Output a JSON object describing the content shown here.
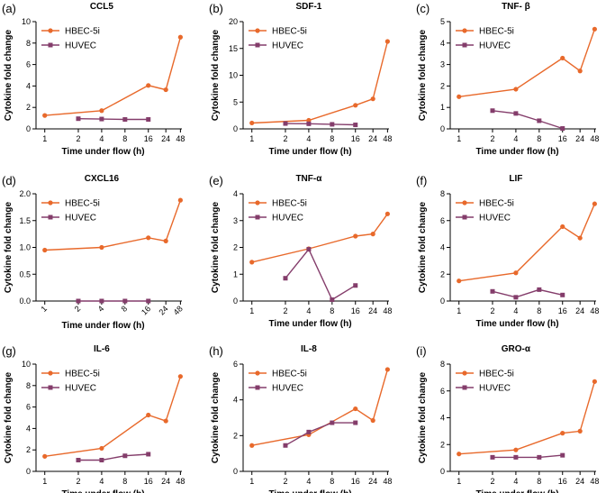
{
  "chart_data": [
    {
      "panel": "(a)",
      "title": "CCL5",
      "type": "line",
      "categories": [
        "1",
        "2",
        "4",
        "8",
        "16",
        "24",
        "48"
      ],
      "xlabel": "Time under flow (h)",
      "ylabel": "Cytokine fold change",
      "ylim": [
        0,
        10
      ],
      "yticks": [
        "0",
        "2",
        "4",
        "6",
        "8",
        "10"
      ],
      "series": [
        {
          "name": "HBEC-5i",
          "color": "#e8692b",
          "marker": "circle",
          "values": [
            1.25,
            null,
            1.7,
            null,
            4.05,
            3.65,
            8.55
          ]
        },
        {
          "name": "HUVEC",
          "color": "#843d6b",
          "marker": "square",
          "values": [
            null,
            0.95,
            0.92,
            0.88,
            0.88,
            null,
            null
          ]
        }
      ]
    },
    {
      "panel": "(b)",
      "title": "SDF-1",
      "type": "line",
      "categories": [
        "1",
        "2",
        "4",
        "8",
        "16",
        "24",
        "48"
      ],
      "xlabel": "Time under flow (h)",
      "ylabel": "Cytokine fold change",
      "ylim": [
        0,
        20
      ],
      "yticks": [
        "0",
        "5",
        "10",
        "15",
        "20"
      ],
      "series": [
        {
          "name": "HBEC-5i",
          "color": "#e8692b",
          "marker": "circle",
          "values": [
            1.1,
            null,
            1.6,
            null,
            4.4,
            5.6,
            16.3
          ]
        },
        {
          "name": "HUVEC",
          "color": "#843d6b",
          "marker": "square",
          "values": [
            null,
            1.0,
            0.95,
            0.85,
            0.75,
            null,
            null
          ]
        }
      ]
    },
    {
      "panel": "(c)",
      "title": "TNF- β",
      "type": "line",
      "categories": [
        "1",
        "2",
        "4",
        "8",
        "16",
        "24",
        "48"
      ],
      "xlabel": "Time under flow (h)",
      "ylabel": "Cytokine fold change",
      "ylim": [
        0,
        5
      ],
      "yticks": [
        "0",
        "1",
        "2",
        "3",
        "4",
        "5"
      ],
      "series": [
        {
          "name": "HBEC-5i",
          "color": "#e8692b",
          "marker": "circle",
          "values": [
            1.5,
            null,
            1.85,
            null,
            3.3,
            2.7,
            4.65
          ]
        },
        {
          "name": "HUVEC",
          "color": "#843d6b",
          "marker": "square",
          "values": [
            null,
            0.85,
            0.72,
            0.38,
            0.02,
            null,
            null
          ]
        }
      ]
    },
    {
      "panel": "(d)",
      "title": "CXCL16",
      "type": "line",
      "categories": [
        "1",
        "2",
        "4",
        "8",
        "16",
        "24",
        "48"
      ],
      "rotate_xticks": true,
      "xlabel": "Time under flow (h)",
      "ylabel": "Cytokine fold change",
      "ylim": [
        0,
        2.0
      ],
      "yticks": [
        "0.0",
        "0.5",
        "1.0",
        "1.5",
        "2.0"
      ],
      "series": [
        {
          "name": "HBEC-5i",
          "color": "#e8692b",
          "marker": "circle",
          "values": [
            0.95,
            null,
            1.0,
            null,
            1.18,
            1.12,
            1.88
          ]
        },
        {
          "name": "HUVEC",
          "color": "#843d6b",
          "marker": "square",
          "values": [
            null,
            0.0,
            0.0,
            0.0,
            0.0,
            null,
            null
          ]
        }
      ]
    },
    {
      "panel": "(e)",
      "title": "TNF-α",
      "type": "line",
      "categories": [
        "1",
        "2",
        "4",
        "8",
        "16",
        "24",
        "48"
      ],
      "xlabel": "Time under flow (h)",
      "ylabel": "Cytokine fold change",
      "ylim": [
        0,
        4
      ],
      "yticks": [
        "0",
        "1",
        "2",
        "3",
        "4"
      ],
      "series": [
        {
          "name": "HBEC-5i",
          "color": "#e8692b",
          "marker": "circle",
          "values": [
            1.45,
            null,
            1.95,
            null,
            2.42,
            2.5,
            3.25
          ]
        },
        {
          "name": "HUVEC",
          "color": "#843d6b",
          "marker": "square",
          "values": [
            null,
            0.85,
            1.93,
            0.05,
            0.58,
            null,
            null
          ]
        }
      ]
    },
    {
      "panel": "(f)",
      "title": "LIF",
      "type": "line",
      "categories": [
        "1",
        "2",
        "4",
        "8",
        "16",
        "24",
        "48"
      ],
      "xlabel": "Time under flow (h)",
      "ylabel": "Cytokine fold change",
      "ylim": [
        0,
        8
      ],
      "yticks": [
        "0",
        "2",
        "4",
        "6",
        "8"
      ],
      "series": [
        {
          "name": "HBEC-5i",
          "color": "#e8692b",
          "marker": "circle",
          "values": [
            1.5,
            null,
            2.1,
            null,
            5.55,
            4.7,
            7.25
          ]
        },
        {
          "name": "HUVEC",
          "color": "#843d6b",
          "marker": "square",
          "values": [
            null,
            0.72,
            0.28,
            0.85,
            0.45,
            null,
            null
          ]
        }
      ]
    },
    {
      "panel": "(g)",
      "title": "IL-6",
      "type": "line",
      "categories": [
        "1",
        "2",
        "4",
        "8",
        "16",
        "24",
        "48"
      ],
      "xlabel": "Time under flow (h)",
      "ylabel": "Cytokine fold change",
      "ylim": [
        0,
        10
      ],
      "yticks": [
        "0",
        "2",
        "4",
        "6",
        "8",
        "10"
      ],
      "series": [
        {
          "name": "HBEC-5i",
          "color": "#e8692b",
          "marker": "circle",
          "values": [
            1.4,
            null,
            2.15,
            null,
            5.25,
            4.7,
            8.85
          ]
        },
        {
          "name": "HUVEC",
          "color": "#843d6b",
          "marker": "square",
          "values": [
            null,
            1.05,
            1.05,
            1.45,
            1.6,
            null,
            null
          ]
        }
      ]
    },
    {
      "panel": "(h)",
      "title": "IL-8",
      "type": "line",
      "categories": [
        "1",
        "2",
        "4",
        "8",
        "16",
        "24",
        "48"
      ],
      "xlabel": "Time under flow (h)",
      "ylabel": "Cytokine fold change",
      "ylim": [
        0,
        6
      ],
      "yticks": [
        "0",
        "2",
        "4",
        "6"
      ],
      "series": [
        {
          "name": "HBEC-5i",
          "color": "#e8692b",
          "marker": "circle",
          "values": [
            1.45,
            null,
            2.05,
            null,
            3.5,
            2.85,
            5.7
          ]
        },
        {
          "name": "HUVEC",
          "color": "#843d6b",
          "marker": "square",
          "values": [
            null,
            1.45,
            2.2,
            2.72,
            2.72,
            null,
            null
          ]
        }
      ]
    },
    {
      "panel": "(i)",
      "title": "GRO-α",
      "type": "line",
      "categories": [
        "1",
        "2",
        "4",
        "8",
        "16",
        "24",
        "48"
      ],
      "xlabel": "Time under flow (h)",
      "ylabel": "Cytokine fold change",
      "ylim": [
        0,
        8
      ],
      "yticks": [
        "0",
        "2",
        "4",
        "6",
        "8"
      ],
      "series": [
        {
          "name": "HBEC-5i",
          "color": "#e8692b",
          "marker": "circle",
          "values": [
            1.3,
            null,
            1.6,
            null,
            2.85,
            3.0,
            6.7
          ]
        },
        {
          "name": "HUVEC",
          "color": "#843d6b",
          "marker": "square",
          "values": [
            null,
            1.05,
            1.05,
            1.05,
            1.2,
            null,
            null
          ]
        }
      ]
    }
  ]
}
